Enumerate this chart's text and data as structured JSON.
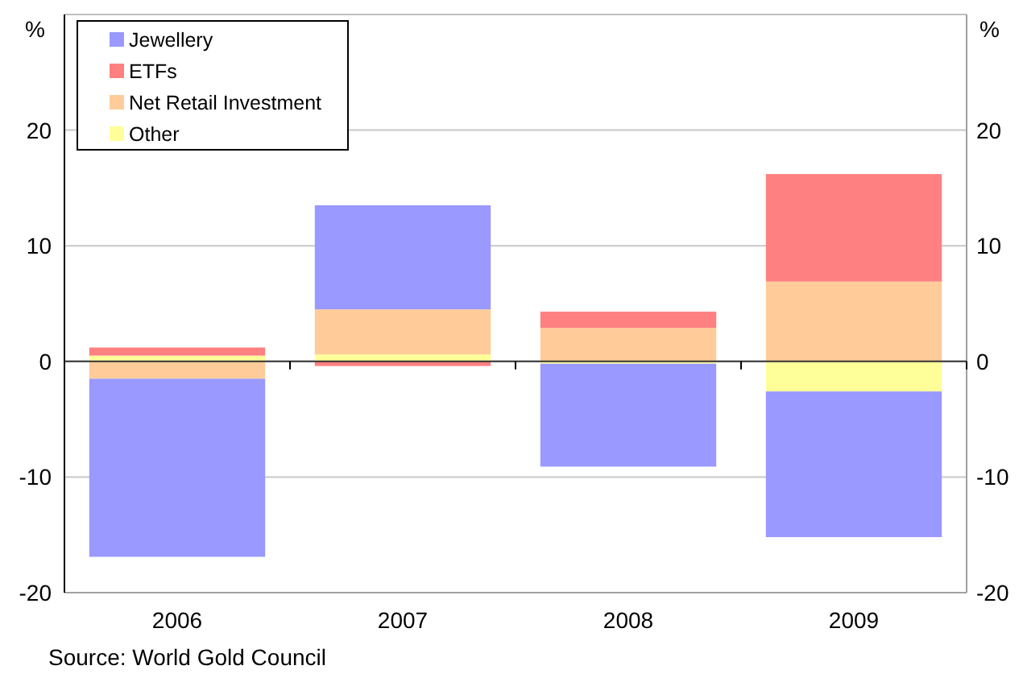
{
  "chart_data": {
    "type": "bar",
    "stacked": true,
    "categories": [
      "2006",
      "2007",
      "2008",
      "2009"
    ],
    "series": [
      {
        "name": "Other",
        "color": "#ffff99",
        "values": [
          0.5,
          0.6,
          -0.2,
          -2.6
        ]
      },
      {
        "name": "Net Retail Investment",
        "color": "#ffcc99",
        "values": [
          -1.5,
          3.9,
          2.9,
          6.9
        ]
      },
      {
        "name": "ETFs",
        "color": "#ff8080",
        "values": [
          0.7,
          -0.4,
          1.4,
          9.3
        ]
      },
      {
        "name": "Jewellery",
        "color": "#9999ff",
        "values": [
          -15.4,
          9.0,
          -8.9,
          -12.6
        ]
      }
    ],
    "ylim": [
      -20,
      30
    ],
    "yticks": [
      -20,
      -10,
      0,
      10,
      20
    ],
    "y2lim": [
      -20,
      30
    ],
    "y2ticks": [
      -20,
      -10,
      0,
      10,
      20
    ],
    "ylabel": "%",
    "y2label": "%",
    "grid": "y",
    "legend": "top left",
    "annotations": [
      "Source: World Gold Council"
    ]
  }
}
